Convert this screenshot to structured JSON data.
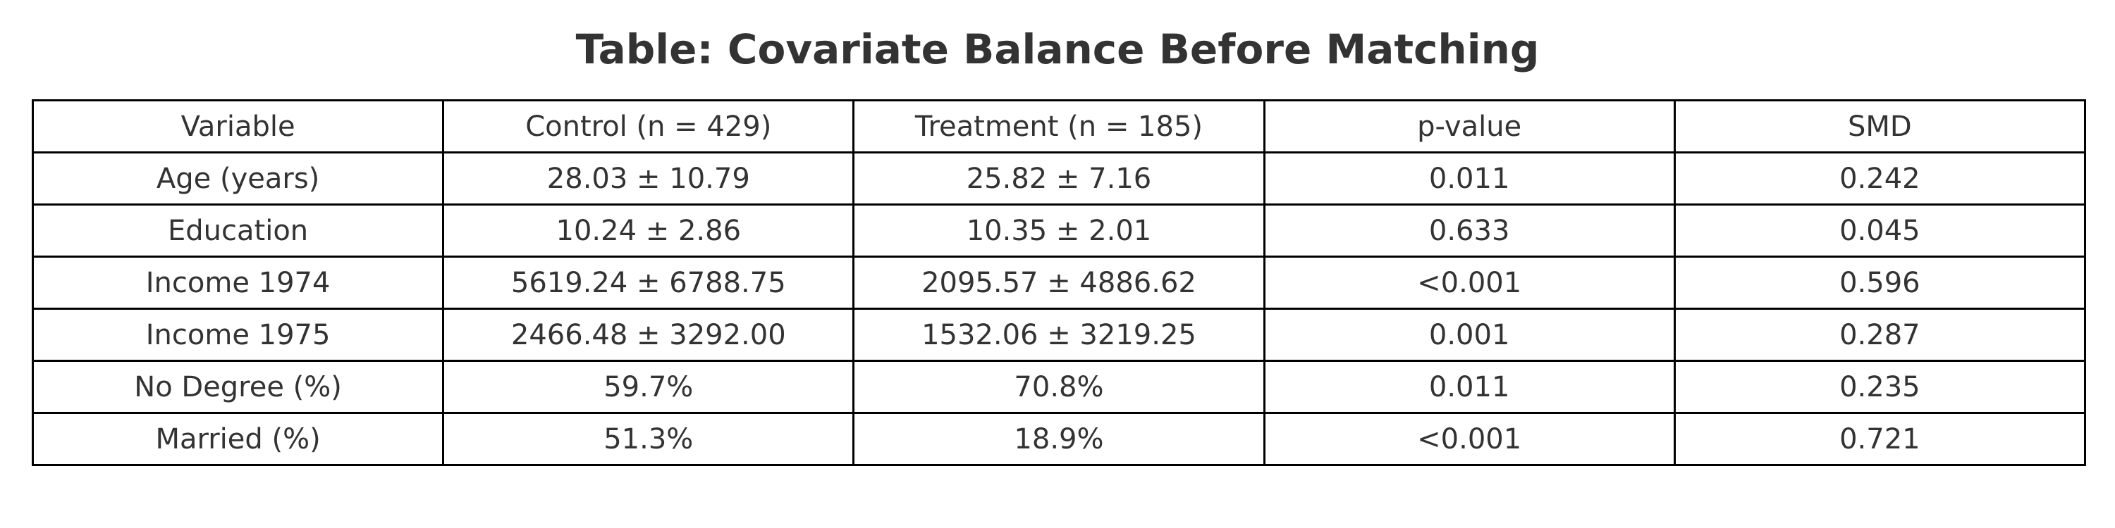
{
  "chart_data": {
    "type": "table",
    "title": "Table: Covariate Balance Before Matching",
    "columns": [
      "Variable",
      "Control (n = 429)",
      "Treatment (n = 185)",
      "p-value",
      "SMD"
    ],
    "rows": [
      [
        "Age (years)",
        "28.03 ± 10.79",
        "25.82 ± 7.16",
        "0.011",
        "0.242"
      ],
      [
        "Education",
        "10.24 ± 2.86",
        "10.35 ± 2.01",
        "0.633",
        "0.045"
      ],
      [
        "Income 1974",
        "5619.24 ± 6788.75",
        "2095.57 ± 4886.62",
        "<0.001",
        "0.596"
      ],
      [
        "Income 1975",
        "2466.48 ± 3292.00",
        "1532.06 ± 3219.25",
        "0.001",
        "0.287"
      ],
      [
        "No Degree (%)",
        "59.7%",
        "70.8%",
        "0.011",
        "0.235"
      ],
      [
        "Married (%)",
        "51.3%",
        "18.9%",
        "<0.001",
        "0.721"
      ]
    ]
  }
}
